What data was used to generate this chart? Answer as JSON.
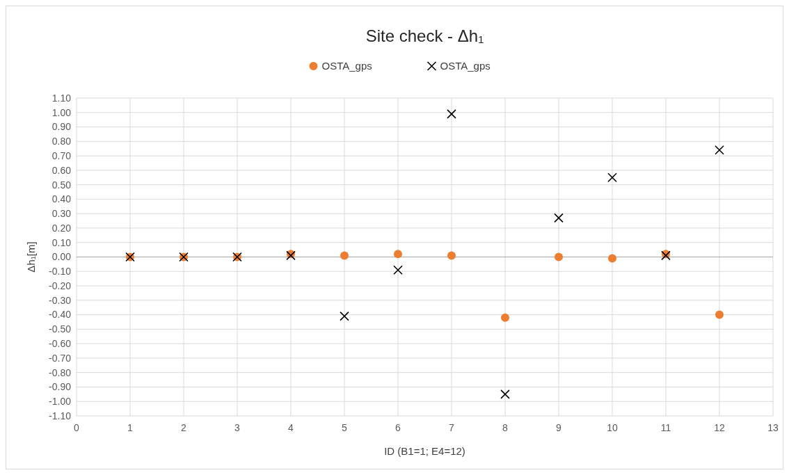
{
  "chart_data": {
    "type": "scatter",
    "title": "Site check - Δh₁",
    "xlabel": "ID (B1=1; E4=12)",
    "ylabel": "Δh₁[m]",
    "x": [
      1,
      2,
      3,
      4,
      5,
      6,
      7,
      8,
      9,
      10,
      11,
      12
    ],
    "series": [
      {
        "name": "OSTA_gps",
        "color": "#ed7d31",
        "marker": "circle",
        "values": [
          0.0,
          0.0,
          0.0,
          0.02,
          0.01,
          0.02,
          0.01,
          -0.42,
          0.0,
          -0.01,
          0.02,
          -0.4
        ]
      },
      {
        "name": "OSTA_gps",
        "color": "#000000",
        "marker": "cross",
        "values": [
          0.0,
          0.0,
          0.0,
          0.01,
          -0.41,
          -0.09,
          0.99,
          -0.95,
          0.27,
          0.55,
          0.01,
          0.74
        ]
      }
    ],
    "xlim": [
      0,
      13
    ],
    "xticks": [
      0,
      1,
      2,
      3,
      4,
      5,
      6,
      7,
      8,
      9,
      10,
      11,
      12,
      13
    ],
    "ylim": [
      -1.1,
      1.1
    ],
    "yticks": [
      {
        "value": -1.1,
        "label": "-1.10"
      },
      {
        "value": -1.0,
        "label": "-1.00"
      },
      {
        "value": -0.9,
        "label": "-0.90"
      },
      {
        "value": -0.8,
        "label": "-0.80"
      },
      {
        "value": -0.7,
        "label": "-0.70"
      },
      {
        "value": -0.6,
        "label": "-0.60"
      },
      {
        "value": -0.5,
        "label": "-0.50"
      },
      {
        "value": -0.4,
        "label": "-0.40"
      },
      {
        "value": -0.3,
        "label": "-0.30"
      },
      {
        "value": -0.2,
        "label": "-0.20"
      },
      {
        "value": -0.1,
        "label": "-0.10"
      },
      {
        "value": 0,
        "label": "0.00"
      },
      {
        "value": 0.1,
        "label": "0.10"
      },
      {
        "value": 0.2,
        "label": "0.20"
      },
      {
        "value": 0.3,
        "label": "0.30"
      },
      {
        "value": 0.4,
        "label": "0.40"
      },
      {
        "value": 0.5,
        "label": "0.50"
      },
      {
        "value": 0.6,
        "label": "0.60"
      },
      {
        "value": 0.7,
        "label": "0.70"
      },
      {
        "value": 0.8,
        "label": "0.80"
      },
      {
        "value": 0.9,
        "label": "0.90"
      },
      {
        "value": 1.0,
        "label": "1.00"
      },
      {
        "value": 1.1,
        "label": "1.10"
      }
    ],
    "grid": true,
    "legend": "top"
  }
}
